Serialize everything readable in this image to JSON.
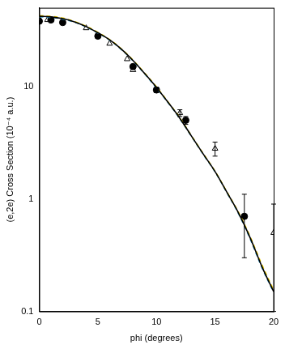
{
  "chart_data": {
    "type": "line",
    "x_label": "phi (degrees)",
    "y_label": "(e,2e) Cross Section (10⁻⁴ a.u.)",
    "xlim": [
      0,
      20
    ],
    "xticks": [
      0,
      5,
      10,
      15,
      20
    ],
    "ylim": [
      0.1,
      50
    ],
    "yticks": [
      0.1,
      1,
      10
    ],
    "log": "y",
    "grid": false,
    "series": [
      {
        "type": "line",
        "color": "#000000",
        "line_style": "solid",
        "x": [
          0,
          1,
          2,
          3,
          4,
          5,
          6,
          7,
          8,
          9,
          10,
          11,
          12,
          13,
          14,
          15,
          16,
          17,
          18,
          19,
          20
        ],
        "values": [
          42,
          41.5,
          40,
          37.5,
          34,
          30,
          26,
          21.5,
          17,
          13,
          9.8,
          7.2,
          5.2,
          3.6,
          2.5,
          1.75,
          1.15,
          0.75,
          0.45,
          0.25,
          0.15
        ]
      },
      {
        "type": "line",
        "color": "#e6c800",
        "line_style": "dashed",
        "x": [
          0,
          1,
          2,
          3,
          4,
          5,
          6,
          7,
          8,
          9,
          10,
          11,
          12,
          13,
          14,
          15,
          16,
          17,
          18,
          19,
          20
        ],
        "values": [
          42.5,
          42,
          40.5,
          37.8,
          34.3,
          30.2,
          26.1,
          21.6,
          17.1,
          13.1,
          9.9,
          7.25,
          5.25,
          3.62,
          2.52,
          1.76,
          1.16,
          0.76,
          0.46,
          0.26,
          0.155
        ]
      },
      {
        "type": "line",
        "color": "#2a8fbf",
        "line_style": "dashed",
        "x": [
          0,
          1,
          2,
          3,
          4,
          5,
          6,
          7,
          8,
          9,
          10,
          11,
          12,
          13,
          14,
          15,
          16,
          17,
          18,
          19,
          20
        ],
        "values": [
          41.5,
          41,
          39.6,
          37.2,
          33.8,
          29.8,
          25.8,
          21.3,
          16.9,
          12.9,
          9.7,
          7.15,
          5.15,
          3.58,
          2.48,
          1.74,
          1.14,
          0.74,
          0.44,
          0.245,
          0.148
        ]
      },
      {
        "type": "scatter",
        "color": "#000000",
        "marker": "circle",
        "x": [
          0,
          1,
          2,
          5,
          8,
          10,
          12.5,
          17.5
        ],
        "values": [
          38,
          39,
          37,
          28,
          15,
          9.3,
          5.0,
          0.7
        ],
        "error_low": [
          null,
          null,
          null,
          null,
          null,
          8.8,
          4.6,
          0.3
        ],
        "error_high": [
          null,
          null,
          null,
          null,
          null,
          9.8,
          5.4,
          1.1
        ]
      },
      {
        "type": "scatter",
        "color": "#000000",
        "marker": "triangle",
        "x": [
          0,
          0.7,
          4,
          6,
          7.5,
          8,
          12,
          15,
          20
        ],
        "values": [
          40,
          39,
          33,
          24,
          17.5,
          14,
          5.8,
          2.8,
          0.5
        ],
        "error_low": [
          null,
          null,
          null,
          null,
          null,
          null,
          5.4,
          2.4,
          0.1
        ],
        "error_high": [
          null,
          null,
          null,
          null,
          null,
          null,
          6.2,
          3.2,
          0.9
        ]
      }
    ]
  }
}
